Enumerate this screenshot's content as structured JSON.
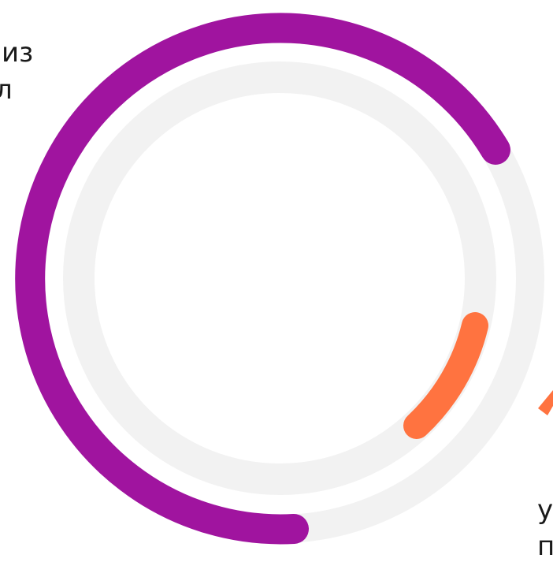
{
  "texts": {
    "top_left_1": "из",
    "top_left_2": "л",
    "bottom_right_1": "у",
    "bottom_right_2": "п"
  }
}
